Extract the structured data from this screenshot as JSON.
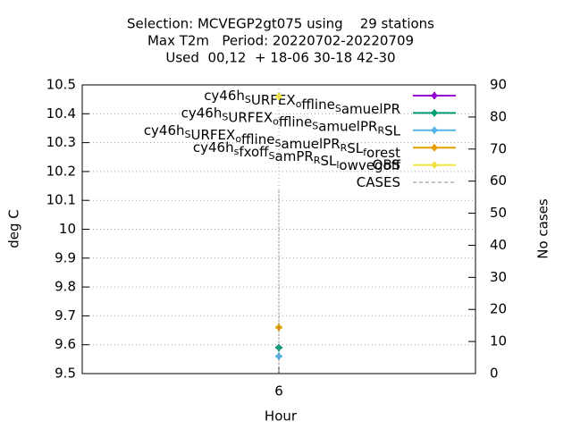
{
  "chart_data": {
    "type": "line",
    "title": [
      "Selection: MCVEGP2gt075 using    29 stations",
      "Max T2m   Period: 20220702-20220709",
      "Used  00,12  + 18-06 30-18 42-30"
    ],
    "xlabel": "Hour",
    "ylabel": "deg C",
    "y2label": "No cases",
    "x": [
      6
    ],
    "xlim": [
      4,
      8
    ],
    "xticks": [
      6
    ],
    "ylim": [
      9.5,
      10.5
    ],
    "yticks": [
      9.5,
      9.6,
      9.7,
      9.8,
      9.9,
      10,
      10.1,
      10.2,
      10.3,
      10.4,
      10.5
    ],
    "y2lim": [
      0,
      90
    ],
    "y2ticks": [
      0,
      10,
      20,
      30,
      40,
      50,
      60,
      70,
      80,
      90
    ],
    "grid": true,
    "legend": "top-right",
    "series": [
      {
        "name": "cy46h_SURFEX_offline_SamuelPR",
        "color": "#9400d3",
        "values": [
          9.59
        ]
      },
      {
        "name": "cy46h_SURFEX_offline_SamuelPR_RSL",
        "color": "#009e73",
        "values": [
          9.59
        ]
      },
      {
        "name": "cy46h_SURFEX_offline_SamuelPR_RSL_forest",
        "color": "#56b4e9",
        "values": [
          9.56
        ]
      },
      {
        "name": "cy46h_sfxoff_SamPR_RSL_lowvegoff",
        "color": "#e69f00",
        "values": [
          9.66
        ]
      },
      {
        "name": "OBS",
        "color": "#f0e442",
        "values": [
          10.46
        ]
      },
      {
        "name": "CASES",
        "color": "#888888",
        "values": [
          57
        ],
        "axis": "y2",
        "style": "dashed"
      }
    ]
  }
}
